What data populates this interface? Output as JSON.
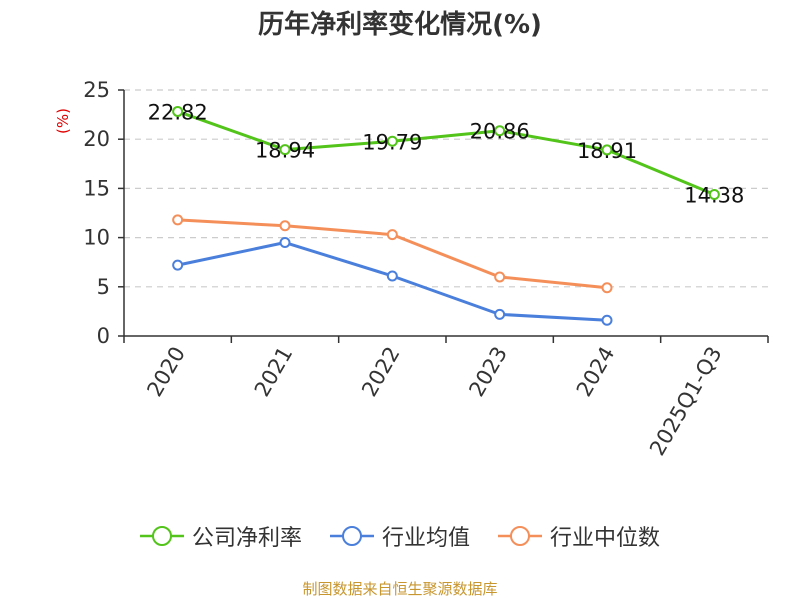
{
  "title": "历年净利率变化情况(%)",
  "source": "制图数据来自恒生聚源数据库",
  "colors": {
    "company": "#52c41a",
    "industry_avg": "#4a7fdc",
    "industry_median": "#f58f5a"
  },
  "chart_data": {
    "type": "line",
    "title": "历年净利率变化情况(%)",
    "ylabel": "(%)",
    "xlabel": "",
    "categories": [
      "2020",
      "2021",
      "2022",
      "2023",
      "2024",
      "2025Q1-Q3"
    ],
    "ylim": [
      0,
      25
    ],
    "yticks": [
      "0",
      "5",
      "10",
      "15",
      "20",
      "25"
    ],
    "grid": true,
    "legend_position": "bottom",
    "series": [
      {
        "name": "公司净利率",
        "values": [
          22.82,
          18.94,
          19.79,
          20.86,
          18.91,
          14.38
        ],
        "labels": [
          "22.82",
          "18.94",
          "19.79",
          "20.86",
          "18.91",
          "14.38"
        ]
      },
      {
        "name": "行业均值",
        "values": [
          7.2,
          9.5,
          6.1,
          2.2,
          1.6,
          null
        ]
      },
      {
        "name": "行业中位数",
        "values": [
          11.8,
          11.2,
          10.3,
          6.0,
          4.9,
          null
        ]
      }
    ]
  }
}
